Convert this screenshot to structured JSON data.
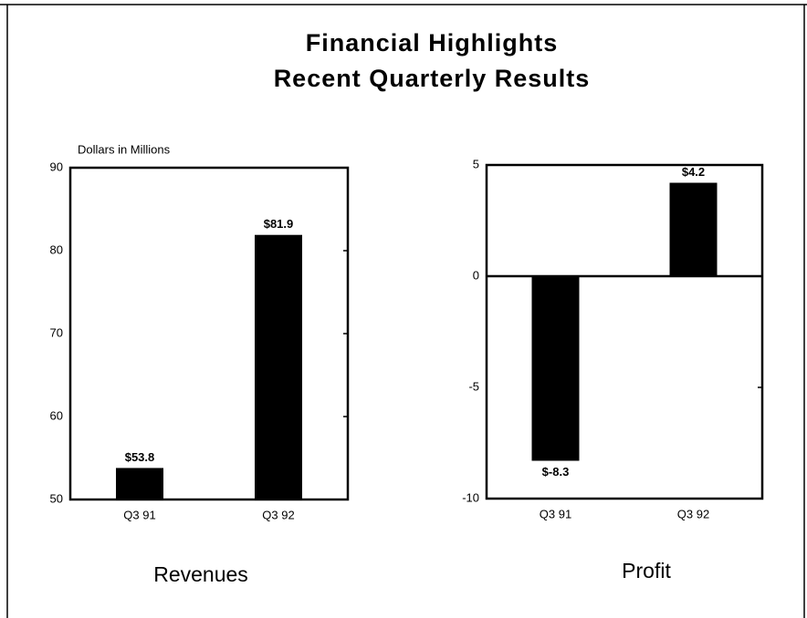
{
  "header": {
    "title": "Financial Highlights",
    "subtitle": "Recent Quarterly Results"
  },
  "chart_data": [
    {
      "type": "bar",
      "title": "Revenues",
      "ylabel": "Dollars in Millions",
      "categories": [
        "Q3 91",
        "Q3 92"
      ],
      "values": [
        53.8,
        81.9
      ],
      "value_labels": [
        "$53.8",
        "$81.9"
      ],
      "color": "#000000",
      "ylim": [
        50,
        90
      ],
      "yticks": [
        50,
        60,
        70,
        80,
        90
      ]
    },
    {
      "type": "bar",
      "title": "Profit",
      "categories": [
        "Q3 91",
        "Q3 92"
      ],
      "values": [
        -8.3,
        4.2
      ],
      "value_labels": [
        "$-8.3",
        "$4.2"
      ],
      "color": "#000000",
      "ylim": [
        -10,
        5
      ],
      "yticks": [
        -10,
        -5,
        0,
        5
      ]
    }
  ]
}
